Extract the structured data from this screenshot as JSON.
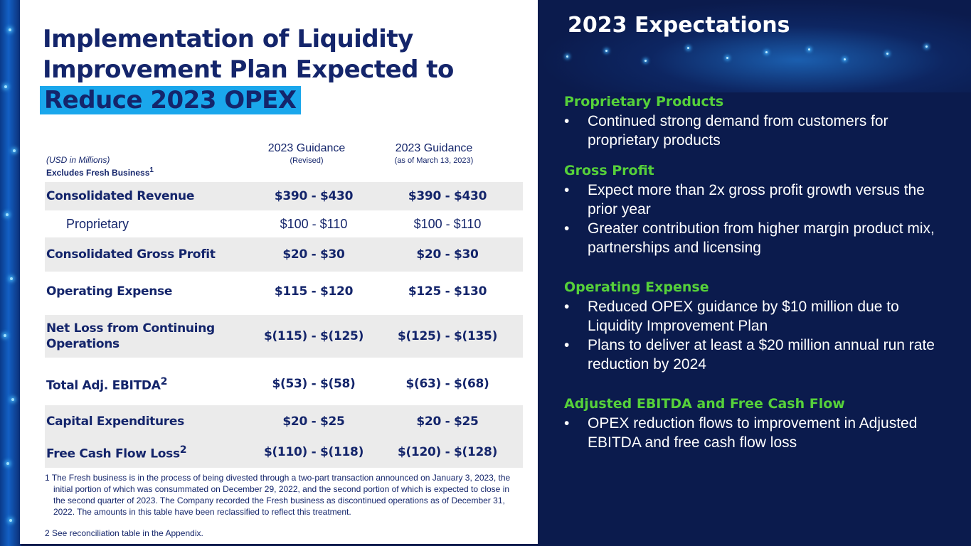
{
  "title": {
    "line1": "Implementation of Liquidity",
    "line2": "Improvement Plan Expected to",
    "highlight": "Reduce 2023 OPEX"
  },
  "table": {
    "units_line": "(USD in Millions)",
    "excludes_line": "Excludes Fresh Business",
    "excludes_sup": "1",
    "col1": {
      "title": "2023 Guidance",
      "subtitle": "(Revised)"
    },
    "col2": {
      "title": "2023 Guidance",
      "subtitle": "(as of March 13, 2023)"
    },
    "rows": [
      {
        "label": "Consolidated  Revenue",
        "sup": "",
        "v1": "$390 - $430",
        "v2": "$390 - $430"
      },
      {
        "label": "Proprietary",
        "sup": "",
        "v1": "$100 - $110",
        "v2": "$100 - $110"
      },
      {
        "label": "Consolidated Gross Profit",
        "sup": "",
        "v1": "$20 - $30",
        "v2": "$20 - $30"
      },
      {
        "label": "Operating Expense",
        "sup": "",
        "v1": "$115 - $120",
        "v2": "$125 - $130"
      },
      {
        "label": "Net Loss from Continuing Operations",
        "sup": "",
        "v1": "$(115) - $(125)",
        "v2": "$(125) - $(135)"
      },
      {
        "label": "Total Adj. EBITDA",
        "sup": "2",
        "v1": "$(53) - $(58)",
        "v2": "$(63) - $(68)"
      },
      {
        "label": "Capital Expenditures",
        "sup": "",
        "v1": "$20 - $25",
        "v2": "$20 - $25"
      },
      {
        "label": "Free Cash Flow Loss",
        "sup": "2",
        "v1": "$(110) - $(118)",
        "v2": "$(120) - $(128)"
      }
    ]
  },
  "footnotes": {
    "note1": "1 The Fresh business is in the process of being divested through a two-part transaction announced on January 3, 2023, the initial portion of which was consummated on December 29, 2022, and the second portion of which is expected to close in the second quarter of 2023. The Company recorded the Fresh business as discontinued operations as of December 31, 2022. The amounts in this table have been reclassified to reflect this treatment.",
    "note2": "2 See reconciliation table in the Appendix."
  },
  "expectations": {
    "title": "2023 Expectations",
    "sections": [
      {
        "heading": "Proprietary Products",
        "bullets": [
          "Continued strong demand from customers for proprietary products"
        ]
      },
      {
        "heading": "Gross Profit",
        "bullets": [
          "Expect more than 2x gross profit growth versus the prior year",
          "Greater contribution from higher margin product mix, partnerships and licensing"
        ]
      },
      {
        "heading": "Operating Expense",
        "bullets": [
          "Reduced OPEX guidance by $10 million due to Liquidity Improvement Plan",
          "Plans to deliver at least a $20 million annual run rate reduction by 2024"
        ]
      },
      {
        "heading": "Adjusted EBITDA and Free Cash Flow",
        "bullets": [
          "OPEX reduction flows to improvement in Adjusted EBITDA and free cash flow loss"
        ]
      }
    ]
  },
  "colors": {
    "navy": "#14256b",
    "background": "#0b1b4d",
    "accent_blue": "#1aa7ec",
    "accent_green": "#56d13a",
    "row_shade": "#ebebeb"
  }
}
